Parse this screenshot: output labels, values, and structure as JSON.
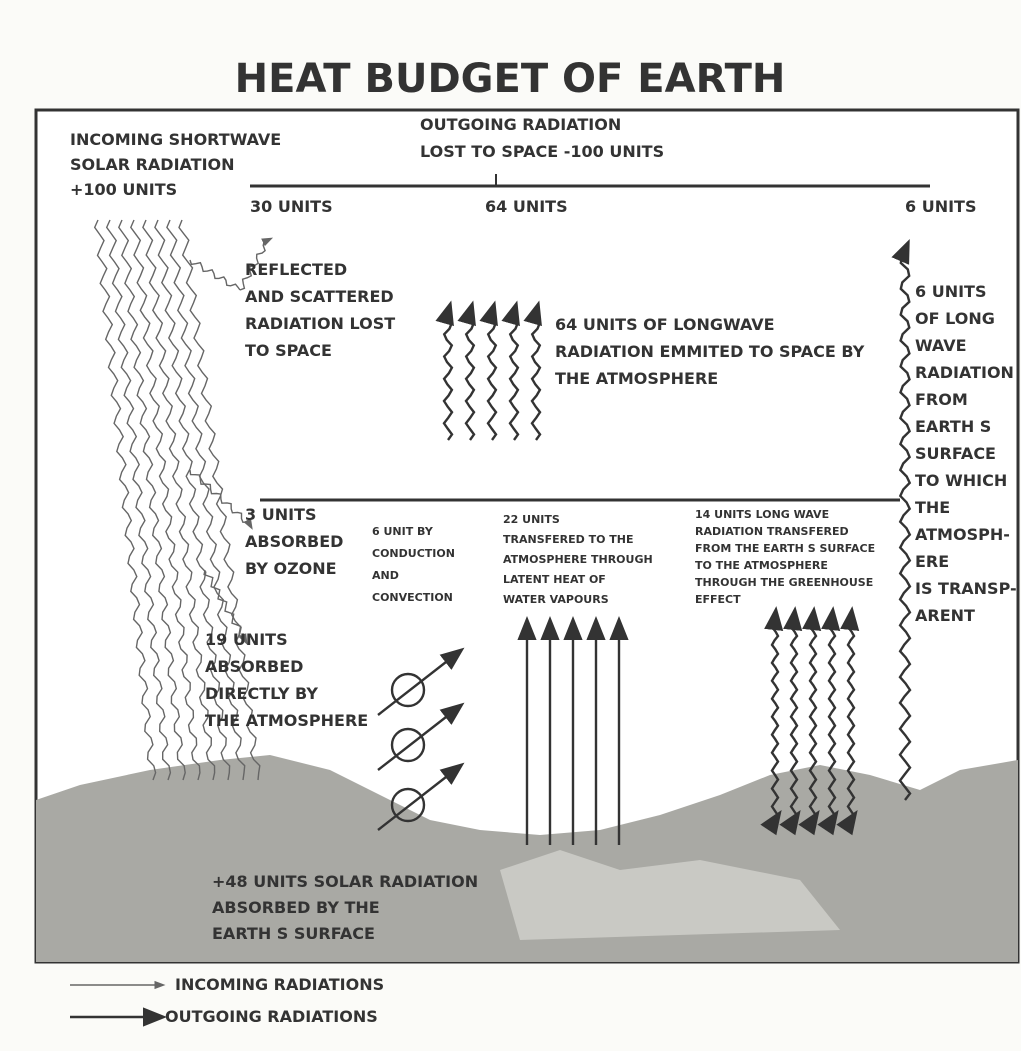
{
  "title": "HEAT BUDGET OF EARTH",
  "labels": [
    {
      "lines": [
        "INCOMING SHORTWAVE",
        "SOLAR RADIATION",
        "+100 UNITS"
      ]
    },
    {
      "lines": [
        "OUTGOING RADIATION",
        "LOST TO SPACE -100 UNITS"
      ]
    },
    {
      "lines": [
        "30 UNITS"
      ]
    },
    {
      "lines": [
        "64 UNITS"
      ]
    },
    {
      "lines": [
        "6 UNITS"
      ]
    },
    {
      "lines": [
        "REFLECTED",
        "AND SCATTERED",
        "RADIATION LOST",
        "TO SPACE"
      ]
    },
    {
      "lines": [
        "64 UNITS OF LONGWAVE",
        "RADIATION EMMITED TO SPACE BY",
        "THE ATMOSPHERE"
      ]
    },
    {
      "lines": [
        "6 UNITS",
        "OF LONG",
        "WAVE",
        "RADIATION",
        "FROM",
        "EARTH S",
        "SURFACE",
        "TO WHICH",
        "THE",
        "ATMOSPH-",
        "ERE",
        "IS TRANSP-",
        "ARENT"
      ]
    },
    {
      "lines": [
        "3 UNITS",
        "ABSORBED",
        "BY OZONE"
      ]
    },
    {
      "lines": [
        "6 UNIT BY",
        "CONDUCTION",
        "AND",
        "CONVECTION"
      ]
    },
    {
      "lines": [
        "22 UNITS",
        "TRANSFERED TO THE",
        "ATMOSPHERE THROUGH",
        "LATENT HEAT OF",
        "WATER VAPOURS"
      ]
    },
    {
      "lines": [
        "14 UNITS LONG WAVE",
        "RADIATION TRANSFERED",
        "FROM THE EARTH S SURFACE",
        "TO THE ATMOSPHERE",
        "THROUGH THE GREENHOUSE",
        "EFFECT"
      ]
    },
    {
      "lines": [
        "19 UNITS",
        "ABSORBED",
        "DIRECTLY BY",
        "THE ATMOSPHERE"
      ]
    },
    {
      "lines": [
        "+48 UNITS SOLAR RADIATION",
        "ABSORBED BY THE",
        "EARTH S SURFACE"
      ]
    }
  ],
  "legend": [
    "INCOMING RADIATIONS",
    "OUTGOING RADIATIONS"
  ]
}
